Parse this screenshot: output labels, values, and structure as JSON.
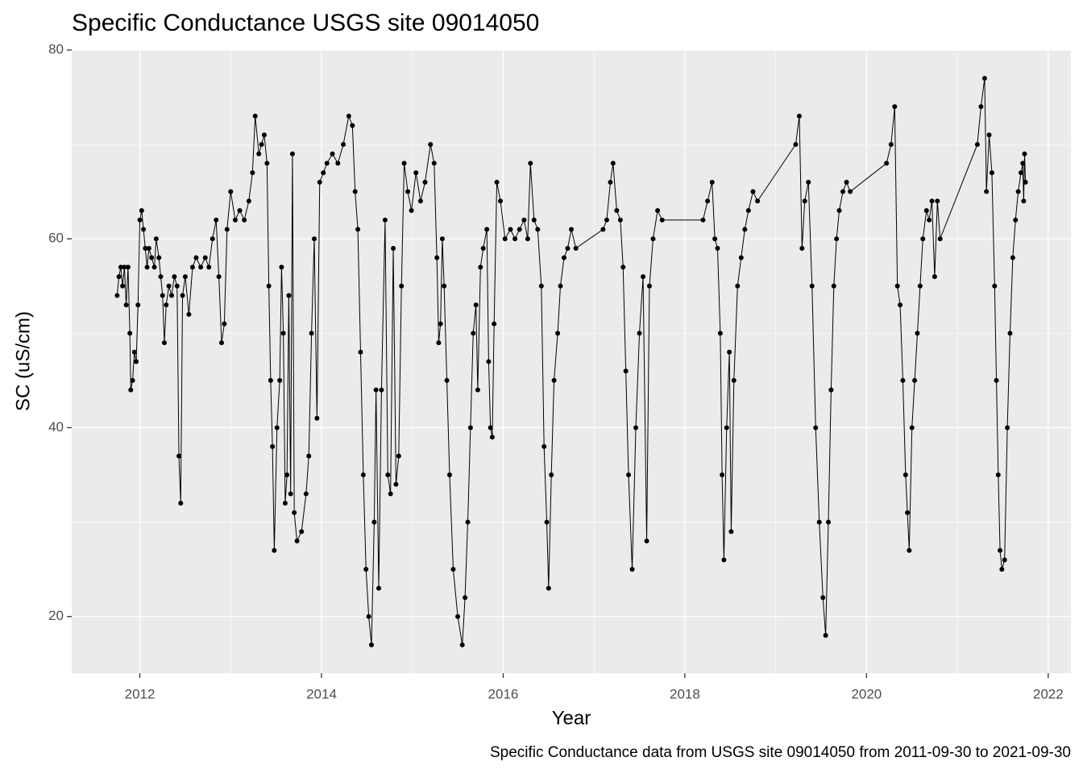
{
  "chart_data": {
    "type": "line",
    "title": "Specific Conductance USGS site 09014050",
    "x_label": "Year",
    "y_label": "SC (uS/cm)",
    "caption": "Specific Conductance data from USGS site 09014050 from 2011-09-30 to 2021-09-30",
    "xlim": [
      2011.25,
      2022.25
    ],
    "xticks": [
      2012,
      2014,
      2016,
      2018,
      2020,
      2022
    ],
    "ylim": [
      14,
      80
    ],
    "yticks": [
      20,
      40,
      60,
      80
    ],
    "grid": true,
    "color": "#000000",
    "markers": true,
    "x": [
      2011.75,
      2011.77,
      2011.79,
      2011.81,
      2011.83,
      2011.85,
      2011.87,
      2011.89,
      2011.9,
      2011.92,
      2011.94,
      2011.96,
      2011.98,
      2012,
      2012.02,
      2012.04,
      2012.06,
      2012.08,
      2012.1,
      2012.13,
      2012.16,
      2012.18,
      2012.21,
      2012.23,
      2012.25,
      2012.27,
      2012.29,
      2012.32,
      2012.35,
      2012.38,
      2012.41,
      2012.43,
      2012.45,
      2012.47,
      2012.5,
      2012.54,
      2012.58,
      2012.62,
      2012.67,
      2012.72,
      2012.76,
      2012.8,
      2012.84,
      2012.87,
      2012.9,
      2012.93,
      2012.96,
      2013,
      2013.05,
      2013.1,
      2013.15,
      2013.2,
      2013.24,
      2013.27,
      2013.31,
      2013.34,
      2013.37,
      2013.4,
      2013.42,
      2013.44,
      2013.46,
      2013.48,
      2013.51,
      2013.54,
      2013.56,
      2013.58,
      2013.6,
      2013.62,
      2013.64,
      2013.66,
      2013.68,
      2013.7,
      2013.73,
      2013.78,
      2013.83,
      2013.86,
      2013.89,
      2013.92,
      2013.95,
      2013.98,
      2014.02,
      2014.06,
      2014.12,
      2014.18,
      2014.24,
      2014.3,
      2014.34,
      2014.37,
      2014.4,
      2014.43,
      2014.46,
      2014.49,
      2014.52,
      2014.55,
      2014.58,
      2014.6,
      2014.63,
      2014.66,
      2014.7,
      2014.73,
      2014.76,
      2014.79,
      2014.82,
      2014.85,
      2014.88,
      2014.91,
      2014.95,
      2014.99,
      2015.04,
      2015.09,
      2015.14,
      2015.2,
      2015.24,
      2015.27,
      2015.29,
      2015.31,
      2015.33,
      2015.35,
      2015.38,
      2015.41,
      2015.45,
      2015.5,
      2015.55,
      2015.58,
      2015.61,
      2015.64,
      2015.67,
      2015.7,
      2015.72,
      2015.75,
      2015.78,
      2015.82,
      2015.84,
      2015.86,
      2015.88,
      2015.9,
      2015.93,
      2015.97,
      2016.02,
      2016.08,
      2016.13,
      2016.18,
      2016.23,
      2016.27,
      2016.3,
      2016.34,
      2016.38,
      2016.42,
      2016.45,
      2016.48,
      2016.5,
      2016.53,
      2016.56,
      2016.6,
      2016.63,
      2016.67,
      2016.71,
      2016.75,
      2016.8,
      2017.1,
      2017.14,
      2017.18,
      2017.21,
      2017.25,
      2017.29,
      2017.32,
      2017.35,
      2017.38,
      2017.42,
      2017.46,
      2017.5,
      2017.54,
      2017.58,
      2017.61,
      2017.65,
      2017.7,
      2017.75,
      2018.2,
      2018.25,
      2018.3,
      2018.33,
      2018.36,
      2018.39,
      2018.41,
      2018.43,
      2018.46,
      2018.49,
      2018.51,
      2018.54,
      2018.58,
      2018.62,
      2018.66,
      2018.7,
      2018.75,
      2018.8,
      2019.22,
      2019.26,
      2019.29,
      2019.32,
      2019.36,
      2019.4,
      2019.44,
      2019.48,
      2019.52,
      2019.55,
      2019.58,
      2019.61,
      2019.64,
      2019.67,
      2019.7,
      2019.74,
      2019.78,
      2019.82,
      2020.22,
      2020.27,
      2020.31,
      2020.34,
      2020.37,
      2020.4,
      2020.43,
      2020.45,
      2020.47,
      2020.5,
      2020.53,
      2020.56,
      2020.59,
      2020.62,
      2020.66,
      2020.69,
      2020.72,
      2020.75,
      2020.78,
      2020.81,
      2021.22,
      2021.26,
      2021.3,
      2021.32,
      2021.35,
      2021.38,
      2021.41,
      2021.43,
      2021.45,
      2021.47,
      2021.49,
      2021.52,
      2021.55,
      2021.58,
      2021.61,
      2021.64,
      2021.67,
      2021.7,
      2021.72,
      2021.73,
      2021.74,
      2021.75
    ],
    "values": [
      54,
      56,
      57,
      55,
      57,
      53,
      57,
      50,
      44,
      45,
      48,
      47,
      53,
      62,
      63,
      61,
      59,
      57,
      59,
      58,
      57,
      60,
      58,
      56,
      54,
      49,
      53,
      55,
      54,
      56,
      55,
      37,
      32,
      54,
      56,
      52,
      57,
      58,
      57,
      58,
      57,
      60,
      62,
      56,
      49,
      51,
      61,
      65,
      62,
      63,
      62,
      64,
      67,
      73,
      69,
      70,
      71,
      68,
      55,
      45,
      38,
      27,
      40,
      45,
      57,
      50,
      32,
      35,
      54,
      33,
      69,
      31,
      28,
      29,
      33,
      37,
      50,
      60,
      41,
      66,
      67,
      68,
      69,
      68,
      70,
      73,
      72,
      65,
      61,
      48,
      35,
      25,
      20,
      17,
      30,
      44,
      23,
      44,
      62,
      35,
      33,
      59,
      34,
      37,
      55,
      68,
      65,
      63,
      67,
      64,
      66,
      70,
      68,
      58,
      49,
      51,
      60,
      55,
      45,
      35,
      25,
      20,
      17,
      22,
      30,
      40,
      50,
      53,
      44,
      57,
      59,
      61,
      47,
      40,
      39,
      51,
      66,
      64,
      60,
      61,
      60,
      61,
      62,
      60,
      68,
      62,
      61,
      55,
      38,
      30,
      23,
      35,
      45,
      50,
      55,
      58,
      59,
      61,
      59,
      61,
      62,
      66,
      68,
      63,
      62,
      57,
      46,
      35,
      25,
      40,
      50,
      56,
      28,
      55,
      60,
      63,
      62,
      62,
      64,
      66,
      60,
      59,
      50,
      35,
      26,
      40,
      48,
      29,
      45,
      55,
      58,
      61,
      63,
      65,
      64,
      70,
      73,
      59,
      64,
      66,
      55,
      40,
      30,
      22,
      18,
      30,
      44,
      55,
      60,
      63,
      65,
      66,
      65,
      68,
      70,
      74,
      55,
      53,
      45,
      35,
      31,
      27,
      40,
      45,
      50,
      55,
      60,
      63,
      62,
      64,
      56,
      64,
      60,
      70,
      74,
      77,
      65,
      71,
      67,
      55,
      45,
      35,
      27,
      25,
      26,
      40,
      50,
      58,
      62,
      65,
      67,
      68,
      64,
      69,
      66
    ]
  }
}
